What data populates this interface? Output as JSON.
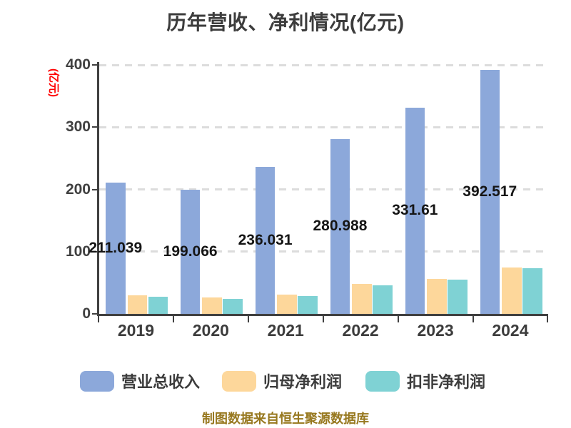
{
  "title": "历年营收、净利情况(亿元)",
  "y_axis": {
    "unit_label": "(亿元)",
    "tick_labels": [
      "400",
      "300",
      "200",
      "100",
      "0"
    ]
  },
  "x_axis": {
    "categories": [
      "2019",
      "2020",
      "2021",
      "2022",
      "2023",
      "2024"
    ]
  },
  "legend": [
    {
      "label": "营业总收入",
      "color": "#8CA8DA"
    },
    {
      "label": "归母净利润",
      "color": "#FDD79B"
    },
    {
      "label": "扣非净利润",
      "color": "#7FD2D4"
    }
  ],
  "caption": "制图数据来自恒生聚源数据库",
  "colors": {
    "background": "#FFFFFF",
    "axis": "#404040",
    "grid": "#DCDCDC",
    "title_text": "#3C3C3C",
    "value_label": "#151515",
    "y_unit_label": "#FF0000",
    "caption": "#97781F"
  },
  "chart_data": {
    "type": "bar",
    "title": "历年营收、净利情况(亿元)",
    "ylabel": "(亿元)",
    "ylim": [
      0,
      400
    ],
    "y_tick_step": 100,
    "grid": "horizontal dashed lines at 100/200/300/400",
    "legend_position": "bottom",
    "value_labels_note": "only 营业总收入 series is labeled, label centered at mid-height of its bar",
    "categories": [
      "2019",
      "2020",
      "2021",
      "2022",
      "2023",
      "2024"
    ],
    "series": [
      {
        "name": "营业总收入",
        "slug": "revenue",
        "color": "#8CA8DA",
        "values": [
          211.039,
          199.066,
          236.031,
          280.988,
          331.61,
          392.517
        ],
        "labels": [
          "211.039",
          "199.066",
          "236.031",
          "280.988",
          "331.61",
          "392.517"
        ]
      },
      {
        "name": "归母净利润",
        "slug": "net-profit",
        "color": "#FDD79B",
        "values": [
          29.5,
          26,
          31.5,
          48,
          56.5,
          75
        ]
      },
      {
        "name": "扣非净利润",
        "slug": "non-gaap-net-profit",
        "color": "#7FD2D4",
        "values": [
          28,
          23.5,
          28.5,
          46,
          55,
          73.5
        ]
      }
    ]
  }
}
